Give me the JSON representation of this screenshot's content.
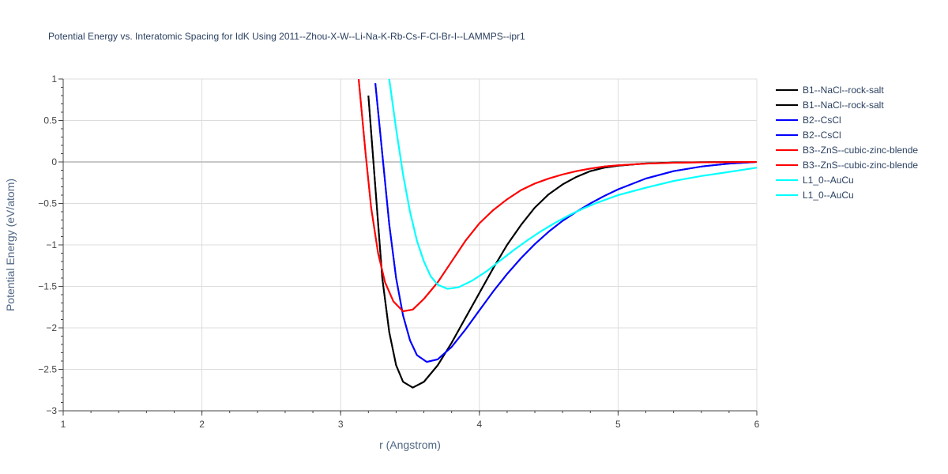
{
  "chart_data": {
    "type": "line",
    "title": "Potential Energy vs. Interatomic Spacing for IdK Using 2011--Zhou-X-W--Li-Na-K-Rb-Cs-F-Cl-Br-I--LAMMPS--ipr1",
    "xlabel": "r (Angstrom)",
    "ylabel": "Potential Energy (eV/atom)",
    "xlim": [
      1,
      6
    ],
    "ylim": [
      -3,
      1
    ],
    "x_ticks": [
      "1",
      "2",
      "3",
      "4",
      "5",
      "6"
    ],
    "y_ticks": [
      "1",
      "0.5",
      "0",
      "−0.5",
      "−1",
      "−1.5",
      "−2",
      "−2.5",
      "−3"
    ],
    "grid": true,
    "legend_position": "right",
    "series": [
      {
        "name": "B1--NaCl--rock-salt",
        "color": "#000000",
        "points": [
          [
            3.2,
            0.8
          ],
          [
            3.25,
            -0.3
          ],
          [
            3.3,
            -1.4
          ],
          [
            3.35,
            -2.05
          ],
          [
            3.4,
            -2.45
          ],
          [
            3.45,
            -2.65
          ],
          [
            3.52,
            -2.72
          ],
          [
            3.6,
            -2.65
          ],
          [
            3.7,
            -2.45
          ],
          [
            3.8,
            -2.18
          ],
          [
            3.9,
            -1.88
          ],
          [
            4.0,
            -1.58
          ],
          [
            4.1,
            -1.28
          ],
          [
            4.2,
            -1.0
          ],
          [
            4.3,
            -0.76
          ],
          [
            4.4,
            -0.55
          ],
          [
            4.5,
            -0.39
          ],
          [
            4.6,
            -0.27
          ],
          [
            4.7,
            -0.18
          ],
          [
            4.8,
            -0.11
          ],
          [
            4.9,
            -0.07
          ],
          [
            5.0,
            -0.045
          ],
          [
            5.2,
            -0.018
          ],
          [
            5.4,
            -0.008
          ],
          [
            5.6,
            -0.004
          ],
          [
            5.8,
            -0.002
          ],
          [
            6.0,
            0.0
          ]
        ]
      },
      {
        "name": "B1--NaCl--rock-salt",
        "color": "#000000",
        "points": [
          [
            3.2,
            0.8
          ],
          [
            3.25,
            -0.3
          ],
          [
            3.3,
            -1.4
          ],
          [
            3.35,
            -2.05
          ],
          [
            3.4,
            -2.45
          ],
          [
            3.45,
            -2.65
          ],
          [
            3.52,
            -2.72
          ],
          [
            3.6,
            -2.65
          ],
          [
            3.7,
            -2.45
          ],
          [
            3.8,
            -2.18
          ],
          [
            3.9,
            -1.88
          ],
          [
            4.0,
            -1.58
          ],
          [
            4.1,
            -1.28
          ],
          [
            4.2,
            -1.0
          ],
          [
            4.3,
            -0.76
          ],
          [
            4.4,
            -0.55
          ],
          [
            4.5,
            -0.39
          ],
          [
            4.6,
            -0.27
          ],
          [
            4.7,
            -0.18
          ],
          [
            4.8,
            -0.11
          ],
          [
            4.9,
            -0.07
          ],
          [
            5.0,
            -0.045
          ],
          [
            5.2,
            -0.018
          ],
          [
            5.4,
            -0.008
          ],
          [
            5.6,
            -0.004
          ],
          [
            5.8,
            -0.002
          ],
          [
            6.0,
            0.0
          ]
        ]
      },
      {
        "name": "B2--CsCl",
        "color": "#0000ff",
        "points": [
          [
            3.25,
            0.95
          ],
          [
            3.3,
            0.1
          ],
          [
            3.35,
            -0.75
          ],
          [
            3.4,
            -1.4
          ],
          [
            3.45,
            -1.85
          ],
          [
            3.5,
            -2.15
          ],
          [
            3.55,
            -2.33
          ],
          [
            3.62,
            -2.41
          ],
          [
            3.7,
            -2.38
          ],
          [
            3.8,
            -2.23
          ],
          [
            3.9,
            -2.02
          ],
          [
            4.0,
            -1.79
          ],
          [
            4.1,
            -1.56
          ],
          [
            4.2,
            -1.35
          ],
          [
            4.3,
            -1.16
          ],
          [
            4.4,
            -0.99
          ],
          [
            4.5,
            -0.84
          ],
          [
            4.6,
            -0.71
          ],
          [
            4.7,
            -0.6
          ],
          [
            4.8,
            -0.5
          ],
          [
            4.9,
            -0.41
          ],
          [
            5.0,
            -0.33
          ],
          [
            5.2,
            -0.2
          ],
          [
            5.4,
            -0.11
          ],
          [
            5.6,
            -0.055
          ],
          [
            5.8,
            -0.02
          ],
          [
            6.0,
            0.0
          ]
        ]
      },
      {
        "name": "B2--CsCl",
        "color": "#0000ff",
        "points": [
          [
            3.25,
            0.95
          ],
          [
            3.3,
            0.1
          ],
          [
            3.35,
            -0.75
          ],
          [
            3.4,
            -1.4
          ],
          [
            3.45,
            -1.85
          ],
          [
            3.5,
            -2.15
          ],
          [
            3.55,
            -2.33
          ],
          [
            3.62,
            -2.41
          ],
          [
            3.7,
            -2.38
          ],
          [
            3.8,
            -2.23
          ],
          [
            3.9,
            -2.02
          ],
          [
            4.0,
            -1.79
          ],
          [
            4.1,
            -1.56
          ],
          [
            4.2,
            -1.35
          ],
          [
            4.3,
            -1.16
          ],
          [
            4.4,
            -0.99
          ],
          [
            4.5,
            -0.84
          ],
          [
            4.6,
            -0.71
          ],
          [
            4.7,
            -0.6
          ],
          [
            4.8,
            -0.5
          ],
          [
            4.9,
            -0.41
          ],
          [
            5.0,
            -0.33
          ],
          [
            5.2,
            -0.2
          ],
          [
            5.4,
            -0.11
          ],
          [
            5.6,
            -0.055
          ],
          [
            5.8,
            -0.02
          ],
          [
            6.0,
            0.0
          ]
        ]
      },
      {
        "name": "B3--ZnS--cubic-zinc-blende",
        "color": "#ff0000",
        "points": [
          [
            3.13,
            1.0
          ],
          [
            3.18,
            0.1
          ],
          [
            3.22,
            -0.55
          ],
          [
            3.27,
            -1.1
          ],
          [
            3.32,
            -1.45
          ],
          [
            3.38,
            -1.68
          ],
          [
            3.45,
            -1.8
          ],
          [
            3.52,
            -1.78
          ],
          [
            3.6,
            -1.65
          ],
          [
            3.7,
            -1.45
          ],
          [
            3.8,
            -1.2
          ],
          [
            3.9,
            -0.95
          ],
          [
            4.0,
            -0.74
          ],
          [
            4.1,
            -0.58
          ],
          [
            4.2,
            -0.45
          ],
          [
            4.3,
            -0.34
          ],
          [
            4.4,
            -0.26
          ],
          [
            4.5,
            -0.2
          ],
          [
            4.6,
            -0.15
          ],
          [
            4.7,
            -0.11
          ],
          [
            4.8,
            -0.08
          ],
          [
            4.9,
            -0.055
          ],
          [
            5.0,
            -0.04
          ],
          [
            5.2,
            -0.02
          ],
          [
            5.4,
            -0.01
          ],
          [
            5.6,
            -0.005
          ],
          [
            5.8,
            -0.002
          ],
          [
            6.0,
            0.0
          ]
        ]
      },
      {
        "name": "B3--ZnS--cubic-zinc-blende",
        "color": "#ff0000",
        "points": [
          [
            3.13,
            1.0
          ],
          [
            3.18,
            0.1
          ],
          [
            3.22,
            -0.55
          ],
          [
            3.27,
            -1.1
          ],
          [
            3.32,
            -1.45
          ],
          [
            3.38,
            -1.68
          ],
          [
            3.45,
            -1.8
          ],
          [
            3.52,
            -1.78
          ],
          [
            3.6,
            -1.65
          ],
          [
            3.7,
            -1.45
          ],
          [
            3.8,
            -1.2
          ],
          [
            3.9,
            -0.95
          ],
          [
            4.0,
            -0.74
          ],
          [
            4.1,
            -0.58
          ],
          [
            4.2,
            -0.45
          ],
          [
            4.3,
            -0.34
          ],
          [
            4.4,
            -0.26
          ],
          [
            4.5,
            -0.2
          ],
          [
            4.6,
            -0.15
          ],
          [
            4.7,
            -0.11
          ],
          [
            4.8,
            -0.08
          ],
          [
            4.9,
            -0.055
          ],
          [
            5.0,
            -0.04
          ],
          [
            5.2,
            -0.02
          ],
          [
            5.4,
            -0.01
          ],
          [
            5.6,
            -0.005
          ],
          [
            5.8,
            -0.002
          ],
          [
            6.0,
            0.0
          ]
        ]
      },
      {
        "name": "L1_0--AuCu",
        "color": "#00ffff",
        "points": [
          [
            3.35,
            1.0
          ],
          [
            3.4,
            0.4
          ],
          [
            3.45,
            -0.15
          ],
          [
            3.5,
            -0.6
          ],
          [
            3.55,
            -0.95
          ],
          [
            3.6,
            -1.2
          ],
          [
            3.65,
            -1.38
          ],
          [
            3.7,
            -1.48
          ],
          [
            3.77,
            -1.53
          ],
          [
            3.85,
            -1.51
          ],
          [
            3.95,
            -1.43
          ],
          [
            4.05,
            -1.32
          ],
          [
            4.15,
            -1.19
          ],
          [
            4.25,
            -1.06
          ],
          [
            4.35,
            -0.94
          ],
          [
            4.45,
            -0.83
          ],
          [
            4.55,
            -0.73
          ],
          [
            4.65,
            -0.64
          ],
          [
            4.75,
            -0.56
          ],
          [
            4.85,
            -0.49
          ],
          [
            4.95,
            -0.43
          ],
          [
            5.0,
            -0.4
          ],
          [
            5.2,
            -0.31
          ],
          [
            5.4,
            -0.23
          ],
          [
            5.6,
            -0.17
          ],
          [
            5.8,
            -0.12
          ],
          [
            6.0,
            -0.07
          ]
        ]
      },
      {
        "name": "L1_0--AuCu",
        "color": "#00ffff",
        "points": [
          [
            3.35,
            1.0
          ],
          [
            3.4,
            0.4
          ],
          [
            3.45,
            -0.15
          ],
          [
            3.5,
            -0.6
          ],
          [
            3.55,
            -0.95
          ],
          [
            3.6,
            -1.2
          ],
          [
            3.65,
            -1.38
          ],
          [
            3.7,
            -1.48
          ],
          [
            3.77,
            -1.53
          ],
          [
            3.85,
            -1.51
          ],
          [
            3.95,
            -1.43
          ],
          [
            4.05,
            -1.32
          ],
          [
            4.15,
            -1.19
          ],
          [
            4.25,
            -1.06
          ],
          [
            4.35,
            -0.94
          ],
          [
            4.45,
            -0.83
          ],
          [
            4.55,
            -0.73
          ],
          [
            4.65,
            -0.64
          ],
          [
            4.75,
            -0.56
          ],
          [
            4.85,
            -0.49
          ],
          [
            4.95,
            -0.43
          ],
          [
            5.0,
            -0.4
          ],
          [
            5.2,
            -0.31
          ],
          [
            5.4,
            -0.23
          ],
          [
            5.6,
            -0.17
          ],
          [
            5.8,
            -0.12
          ],
          [
            6.0,
            -0.07
          ]
        ]
      }
    ]
  }
}
